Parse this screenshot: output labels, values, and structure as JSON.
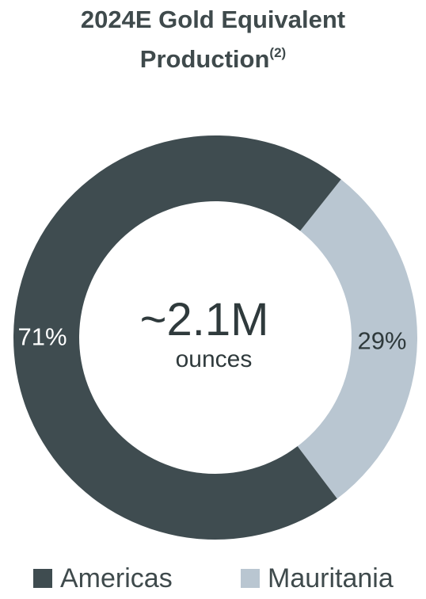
{
  "chart": {
    "title_line1": "2024E Gold Equivalent",
    "title_line2": "Production",
    "title_footnote": "(2)",
    "center_value": "~2.1M",
    "center_unit": "ounces"
  },
  "chart_data": {
    "type": "pie",
    "donut": true,
    "title": "2024E Gold Equivalent Production(2)",
    "categories": [
      "Americas",
      "Mauritania"
    ],
    "values": [
      71,
      29
    ],
    "labels": [
      "71%",
      "29%"
    ],
    "colors": [
      "#3f4c50",
      "#b9c6d1"
    ],
    "legend_position": "bottom",
    "center_text": "~2.1M ounces"
  },
  "legend": [
    {
      "label": "Americas",
      "color": "#3f4c50"
    },
    {
      "label": "Mauritania",
      "color": "#b9c6d1"
    }
  ]
}
